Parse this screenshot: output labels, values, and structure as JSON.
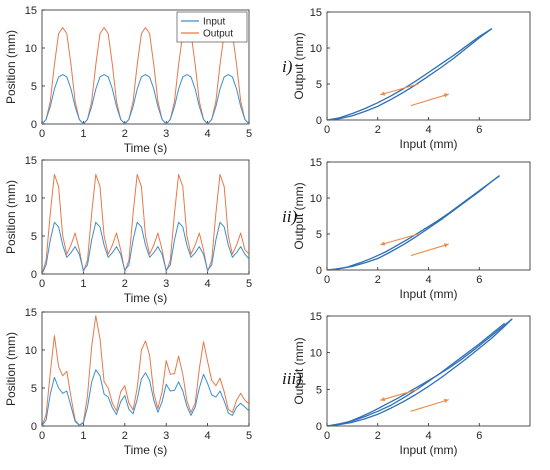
{
  "colors": {
    "input": "#3b8fd0",
    "output": "#e8784a",
    "loop": "#2e6fb5",
    "arrow": "#f08a45",
    "axis": "#262626"
  },
  "chart_data": [
    {
      "id": "time-i",
      "type": "line",
      "xlabel": "Time (s)",
      "ylabel": "Position (mm)",
      "xlim": [
        0,
        5
      ],
      "ylim": [
        0,
        15
      ],
      "xticks": [
        0,
        1,
        2,
        3,
        4,
        5
      ],
      "yticks": [
        0,
        5,
        10,
        15
      ],
      "legend": {
        "position": "top-right",
        "entries": [
          "Input",
          "Output"
        ]
      },
      "series": [
        {
          "name": "Input",
          "x": [
            0,
            0.1,
            0.2,
            0.3,
            0.4,
            0.5,
            0.6,
            0.7,
            0.8,
            0.9,
            1.0,
            1.1,
            1.2,
            1.3,
            1.4,
            1.5,
            1.6,
            1.7,
            1.8,
            1.9,
            2.0,
            2.1,
            2.2,
            2.3,
            2.4,
            2.5,
            2.6,
            2.7,
            2.8,
            2.9,
            3.0,
            3.1,
            3.2,
            3.3,
            3.4,
            3.5,
            3.6,
            3.7,
            3.8,
            3.9,
            4.0,
            4.1,
            4.2,
            4.3,
            4.4,
            4.5,
            4.6,
            4.7,
            4.8,
            4.9,
            5.0
          ],
          "y": [
            0,
            0.6,
            2.3,
            4.6,
            6.2,
            6.5,
            6.2,
            4.6,
            2.3,
            0.6,
            0,
            0.6,
            2.3,
            4.6,
            6.2,
            6.5,
            6.2,
            4.6,
            2.3,
            0.6,
            0,
            0.6,
            2.3,
            4.6,
            6.2,
            6.5,
            6.2,
            4.6,
            2.3,
            0.6,
            0,
            0.6,
            2.3,
            4.6,
            6.2,
            6.5,
            6.2,
            4.6,
            2.3,
            0.6,
            0,
            0.6,
            2.3,
            4.6,
            6.2,
            6.5,
            6.2,
            4.6,
            2.3,
            0.6,
            0
          ]
        },
        {
          "name": "Output",
          "x": [
            0,
            0.1,
            0.2,
            0.3,
            0.4,
            0.5,
            0.6,
            0.7,
            0.8,
            0.9,
            1.0,
            1.1,
            1.2,
            1.3,
            1.4,
            1.5,
            1.6,
            1.7,
            1.8,
            1.9,
            2.0,
            2.1,
            2.2,
            2.3,
            2.4,
            2.5,
            2.6,
            2.7,
            2.8,
            2.9,
            3.0,
            3.1,
            3.2,
            3.3,
            3.4,
            3.5,
            3.6,
            3.7,
            3.8,
            3.9,
            4.0,
            4.1,
            4.2,
            4.3,
            4.4,
            4.5,
            4.6,
            4.7,
            4.8,
            4.9,
            5.0
          ],
          "y": [
            0,
            0.6,
            3.0,
            7.8,
            11.9,
            12.7,
            11.9,
            7.8,
            3.0,
            0.6,
            0,
            0.6,
            3.0,
            7.8,
            11.9,
            12.7,
            11.9,
            7.8,
            3.0,
            0.6,
            0,
            0.6,
            3.0,
            7.8,
            11.9,
            12.7,
            11.9,
            7.8,
            3.0,
            0.6,
            0,
            0.6,
            3.0,
            7.8,
            11.9,
            12.7,
            11.9,
            7.8,
            3.0,
            0.6,
            0,
            0.6,
            3.0,
            7.8,
            11.9,
            12.7,
            11.9,
            7.8,
            3.0,
            0.6,
            0
          ]
        }
      ]
    },
    {
      "id": "loop-i",
      "type": "line",
      "xlabel": "Input (mm)",
      "ylabel": "Output (mm)",
      "xlim": [
        0,
        8
      ],
      "ylim": [
        0,
        15
      ],
      "xticks": [
        0,
        2,
        4,
        6
      ],
      "yticks": [
        0,
        5,
        10,
        15
      ],
      "panel_label": "i)",
      "series": [
        {
          "name": "",
          "x": [
            0,
            0.5,
            1,
            1.5,
            2,
            2.5,
            3,
            3.5,
            4,
            4.5,
            5,
            5.5,
            6,
            6.5
          ],
          "y": [
            0,
            0.2,
            0.6,
            1.2,
            1.9,
            2.8,
            3.8,
            4.9,
            6.1,
            7.3,
            8.6,
            10.0,
            11.4,
            12.7
          ]
        },
        {
          "name": "",
          "x": [
            6.5,
            6,
            5.5,
            5,
            4.5,
            4,
            3.5,
            3,
            2.5,
            2,
            1.5,
            1,
            0.5,
            0
          ],
          "y": [
            12.7,
            11.6,
            10.3,
            9.0,
            7.8,
            6.6,
            5.4,
            4.3,
            3.3,
            2.4,
            1.6,
            0.9,
            0.3,
            0
          ]
        }
      ]
    },
    {
      "id": "time-ii",
      "type": "line",
      "xlabel": "Time (s)",
      "ylabel": "Position (mm)",
      "xlim": [
        0,
        5
      ],
      "ylim": [
        0,
        15
      ],
      "xticks": [
        0,
        1,
        2,
        3,
        4,
        5
      ],
      "yticks": [
        0,
        5,
        10,
        15
      ],
      "series": [
        {
          "name": "Input",
          "x": [
            0,
            0.1,
            0.2,
            0.3,
            0.4,
            0.5,
            0.6,
            0.7,
            0.8,
            0.9,
            1.0,
            1.1,
            1.2,
            1.3,
            1.4,
            1.5,
            1.6,
            1.7,
            1.8,
            1.9,
            2.0,
            2.1,
            2.2,
            2.3,
            2.4,
            2.5,
            2.6,
            2.7,
            2.8,
            2.9,
            3.0,
            3.1,
            3.2,
            3.3,
            3.4,
            3.5,
            3.6,
            3.7,
            3.8,
            3.9,
            4.0,
            4.1,
            4.2,
            4.3,
            4.4,
            4.5,
            4.6,
            4.7,
            4.8,
            4.9,
            5.0
          ],
          "y": [
            0,
            1.2,
            4.5,
            6.8,
            6.2,
            3.8,
            2.2,
            2.8,
            3.6,
            2.6,
            0.5,
            1.2,
            4.5,
            6.8,
            6.2,
            3.8,
            2.2,
            2.8,
            3.6,
            2.6,
            0.5,
            1.2,
            4.5,
            6.8,
            6.2,
            3.8,
            2.2,
            2.8,
            3.6,
            2.6,
            0.5,
            1.2,
            4.5,
            6.8,
            6.2,
            3.8,
            2.2,
            2.8,
            3.6,
            2.6,
            0.5,
            1.2,
            4.5,
            6.8,
            6.2,
            3.8,
            2.2,
            2.8,
            3.6,
            2.6,
            2.0
          ]
        },
        {
          "name": "Output",
          "x": [
            0,
            0.1,
            0.2,
            0.3,
            0.4,
            0.5,
            0.6,
            0.7,
            0.8,
            0.9,
            1.0,
            1.1,
            1.2,
            1.3,
            1.4,
            1.5,
            1.6,
            1.7,
            1.8,
            1.9,
            2.0,
            2.1,
            2.2,
            2.3,
            2.4,
            2.5,
            2.6,
            2.7,
            2.8,
            2.9,
            3.0,
            3.1,
            3.2,
            3.3,
            3.4,
            3.5,
            3.6,
            3.7,
            3.8,
            3.9,
            4.0,
            4.1,
            4.2,
            4.3,
            4.4,
            4.5,
            4.6,
            4.7,
            4.8,
            4.9,
            5.0
          ],
          "y": [
            0,
            1.8,
            8.0,
            13.1,
            11.5,
            5.0,
            2.6,
            3.8,
            5.4,
            3.2,
            0.3,
            1.8,
            8.0,
            13.1,
            11.5,
            5.0,
            2.6,
            3.8,
            5.4,
            3.2,
            0.3,
            1.8,
            8.0,
            13.1,
            11.5,
            5.0,
            2.6,
            3.8,
            5.4,
            3.2,
            0.3,
            1.8,
            8.0,
            13.1,
            11.5,
            5.0,
            2.6,
            3.8,
            5.4,
            3.2,
            0.3,
            1.8,
            8.0,
            13.1,
            11.5,
            5.0,
            2.6,
            3.8,
            5.4,
            3.2,
            2.6
          ]
        }
      ]
    },
    {
      "id": "loop-ii",
      "type": "line",
      "xlabel": "Input (mm)",
      "ylabel": "Output (mm)",
      "xlim": [
        0,
        8
      ],
      "ylim": [
        0,
        15
      ],
      "xticks": [
        0,
        2,
        4,
        6
      ],
      "yticks": [
        0,
        5,
        10,
        15
      ],
      "panel_label": "ii)",
      "series": [
        {
          "name": "",
          "x": [
            0,
            0.5,
            1,
            1.5,
            2,
            2.5,
            3,
            3.5,
            4,
            4.5,
            5,
            5.5,
            6,
            6.5,
            6.8
          ],
          "y": [
            0,
            0.2,
            0.5,
            1.0,
            1.6,
            2.5,
            3.5,
            4.6,
            5.8,
            7.0,
            8.3,
            9.6,
            10.9,
            12.3,
            13.1
          ]
        },
        {
          "name": "",
          "x": [
            6.8,
            6.3,
            5.8,
            5.3,
            4.8,
            4.3,
            3.8,
            3.3,
            2.8,
            2.3,
            1.8,
            1.3,
            0.8,
            0.3,
            0
          ],
          "y": [
            13.1,
            11.8,
            10.5,
            9.2,
            7.9,
            6.7,
            5.6,
            4.5,
            3.5,
            2.5,
            1.7,
            1.0,
            0.4,
            0.1,
            0
          ]
        }
      ]
    },
    {
      "id": "time-iii",
      "type": "line",
      "xlabel": "Time (s)",
      "ylabel": "Position (mm)",
      "xlim": [
        0,
        5
      ],
      "ylim": [
        0,
        15
      ],
      "xticks": [
        0,
        1,
        2,
        3,
        4,
        5
      ],
      "yticks": [
        0,
        5,
        10,
        15
      ],
      "series": [
        {
          "name": "Input",
          "x": [
            0,
            0.1,
            0.2,
            0.3,
            0.4,
            0.5,
            0.6,
            0.7,
            0.8,
            0.9,
            1.0,
            1.1,
            1.2,
            1.3,
            1.4,
            1.5,
            1.6,
            1.7,
            1.8,
            1.9,
            2.0,
            2.1,
            2.2,
            2.3,
            2.4,
            2.5,
            2.6,
            2.7,
            2.8,
            2.9,
            3.0,
            3.1,
            3.2,
            3.3,
            3.4,
            3.5,
            3.6,
            3.7,
            3.8,
            3.9,
            4.0,
            4.1,
            4.2,
            4.3,
            4.4,
            4.5,
            4.6,
            4.7,
            4.8,
            4.9,
            5.0
          ],
          "y": [
            0,
            0.8,
            4.2,
            6.4,
            5.0,
            4.3,
            4.6,
            2.6,
            0.6,
            0.1,
            0.4,
            2.5,
            5.8,
            7.4,
            6.6,
            4.2,
            3.8,
            2.4,
            1.5,
            3.2,
            4.0,
            2.2,
            1.6,
            3.5,
            6.2,
            7.0,
            6.0,
            3.4,
            1.8,
            3.2,
            5.5,
            4.6,
            4.7,
            5.8,
            4.6,
            2.6,
            1.4,
            2.5,
            5.0,
            6.8,
            5.6,
            4.1,
            3.8,
            4.6,
            3.3,
            1.7,
            1.4,
            2.5,
            3.0,
            2.5,
            2.0
          ]
        },
        {
          "name": "Output",
          "x": [
            0,
            0.1,
            0.2,
            0.3,
            0.4,
            0.5,
            0.6,
            0.7,
            0.8,
            0.9,
            1.0,
            1.1,
            1.2,
            1.3,
            1.4,
            1.5,
            1.6,
            1.7,
            1.8,
            1.9,
            2.0,
            2.1,
            2.2,
            2.3,
            2.4,
            2.5,
            2.6,
            2.7,
            2.8,
            2.9,
            3.0,
            3.1,
            3.2,
            3.3,
            3.4,
            3.5,
            3.6,
            3.7,
            3.8,
            3.9,
            4.0,
            4.1,
            4.2,
            4.3,
            4.4,
            4.5,
            4.6,
            4.7,
            4.8,
            4.9,
            5.0
          ],
          "y": [
            0,
            1.5,
            7.0,
            11.9,
            7.8,
            6.6,
            7.2,
            3.8,
            0.8,
            0.1,
            0.5,
            4.0,
            10.5,
            14.5,
            11.5,
            5.8,
            5.0,
            3.0,
            2.0,
            4.5,
            5.3,
            3.0,
            2.1,
            5.0,
            10.0,
            11.2,
            9.3,
            4.3,
            2.3,
            4.5,
            8.6,
            6.8,
            6.9,
            9.2,
            6.8,
            3.3,
            1.8,
            3.0,
            7.5,
            11.1,
            8.5,
            6.0,
            5.3,
            6.3,
            4.5,
            2.2,
            1.8,
            3.4,
            4.3,
            3.4,
            2.9
          ]
        }
      ]
    },
    {
      "id": "loop-iii",
      "type": "line",
      "xlabel": "Input (mm)",
      "ylabel": "Output (mm)",
      "xlim": [
        0,
        8
      ],
      "ylim": [
        0,
        15
      ],
      "xticks": [
        0,
        2,
        4,
        6
      ],
      "yticks": [
        0,
        5,
        10,
        15
      ],
      "panel_label": "iii)",
      "series": [
        {
          "name": "",
          "x": [
            0,
            0.5,
            1,
            1.5,
            2,
            2.5,
            3,
            3.5,
            4,
            4.5,
            5,
            5.5,
            6,
            6.5,
            7,
            7.3
          ],
          "y": [
            0,
            0.2,
            0.5,
            1.0,
            1.6,
            2.4,
            3.3,
            4.3,
            5.4,
            6.6,
            7.9,
            9.2,
            10.6,
            12.0,
            13.6,
            14.6
          ]
        },
        {
          "name": "",
          "x": [
            7.3,
            6.8,
            6.3,
            5.8,
            5.3,
            4.8,
            4.3,
            3.8,
            3.3,
            2.8,
            2.3,
            1.8,
            1.3,
            0.8,
            0.3,
            0
          ],
          "y": [
            14.6,
            13.2,
            11.8,
            10.4,
            9.1,
            7.9,
            6.8,
            5.8,
            4.8,
            3.8,
            2.9,
            2.0,
            1.2,
            0.5,
            0.1,
            0
          ]
        },
        {
          "name": "",
          "x": [
            0,
            0.5,
            1,
            1.5,
            2,
            2.5,
            3,
            3.5,
            4,
            4.5,
            5,
            5.5,
            6,
            6.5,
            7
          ],
          "y": [
            0,
            0.3,
            0.7,
            1.3,
            2.0,
            2.8,
            3.8,
            4.9,
            6.1,
            7.3,
            8.6,
            9.9,
            11.2,
            12.6,
            14.0
          ]
        }
      ]
    }
  ]
}
